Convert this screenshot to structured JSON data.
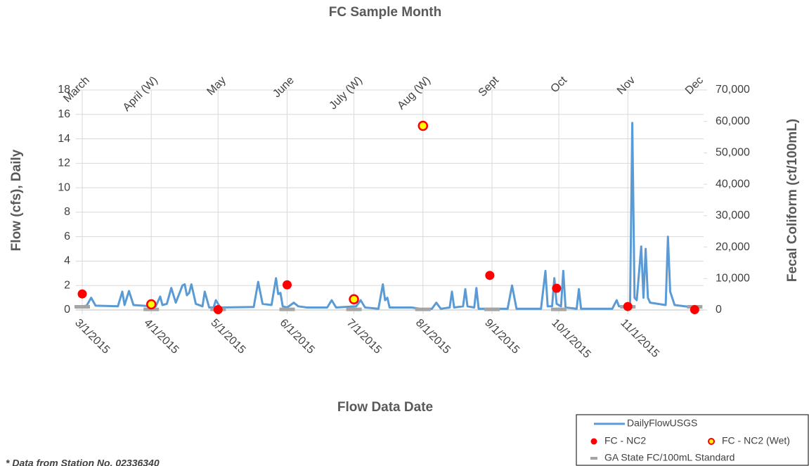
{
  "chart_data": {
    "type": "combo",
    "x2_title": "FC Sample Month",
    "x_title": "Flow Data Date",
    "y_title": "Flow (cfs), Daily",
    "y2_title": "Fecal Coliform (ct/100mL)",
    "footnote": "* Data from Station No. 02336340",
    "x2_categories": [
      "March",
      "April (W)",
      "May",
      "June",
      "July (W)",
      "Aug (W)",
      "Sept",
      "Oct",
      "Nov",
      "Dec"
    ],
    "xlim": [
      "2/26/2015",
      "12/5/2015"
    ],
    "xticks": [
      "3/1/2015",
      "4/1/2015",
      "5/1/2015",
      "6/1/2015",
      "7/1/2015",
      "8/1/2015",
      "9/1/2015",
      "10/1/2015",
      "11/1/2015"
    ],
    "ylim": [
      0,
      18
    ],
    "yticks": [
      0,
      2,
      4,
      6,
      8,
      10,
      12,
      14,
      16,
      18
    ],
    "y2lim": [
      0,
      70000
    ],
    "y2ticks": [
      0,
      {
        "value": 10000,
        "label": "10,000"
      },
      {
        "value": 20000,
        "label": "20,000"
      },
      {
        "value": 30000,
        "label": "30,000"
      },
      {
        "value": 40000,
        "label": "40,000"
      },
      {
        "value": 50000,
        "label": "50,000"
      },
      {
        "value": 60000,
        "label": "60,000"
      },
      {
        "value": 70000,
        "label": "70,000"
      }
    ],
    "grid": true,
    "legend": "bottom-right",
    "series": [
      {
        "name": "DailyFlowUSGS",
        "type": "line",
        "color": "#5b9bd5",
        "x": [
          "3/1/2015",
          "3/3/2015",
          "3/5/2015",
          "3/7/2015",
          "3/17/2015",
          "3/19/2015",
          "3/20/2015",
          "3/22/2015",
          "3/24/2015",
          "4/1/2015",
          "4/3/2015",
          "4/5/2015",
          "4/6/2015",
          "4/8/2015",
          "4/10/2015",
          "4/12/2015",
          "4/15/2015",
          "4/16/2015",
          "4/17/2015",
          "4/18/2015",
          "4/19/2015",
          "4/21/2015",
          "4/24/2015",
          "4/25/2015",
          "4/27/2015",
          "4/29/2015",
          "4/30/2015",
          "5/2/2015",
          "5/17/2015",
          "5/19/2015",
          "5/21/2015",
          "5/25/2015",
          "5/27/2015",
          "5/28/2015",
          "5/29/2015",
          "5/30/2015",
          "6/1/2015",
          "6/4/2015",
          "6/6/2015",
          "6/10/2015",
          "6/19/2015",
          "6/21/2015",
          "6/23/2015",
          "7/2/2015",
          "7/4/2015",
          "7/6/2015",
          "7/12/2015",
          "7/14/2015",
          "7/15/2015",
          "7/16/2015",
          "7/17/2015",
          "7/27/2015",
          "8/1/2015",
          "8/5/2015",
          "8/7/2015",
          "8/9/2015",
          "8/13/2015",
          "8/14/2015",
          "8/15/2015",
          "8/19/2015",
          "8/20/2015",
          "8/21/2015",
          "8/24/2015",
          "8/25/2015",
          "8/26/2015",
          "9/8/2015",
          "9/10/2015",
          "9/12/2015",
          "9/23/2015",
          "9/25/2015",
          "9/26/2015",
          "9/28/2015",
          "9/29/2015",
          "9/30/2015",
          "10/2/2015",
          "10/3/2015",
          "10/4/2015",
          "10/9/2015",
          "10/10/2015",
          "10/11/2015",
          "10/25/2015",
          "10/27/2015",
          "10/28/2015",
          "11/2/2015",
          "11/3/2015",
          "11/4/2015",
          "11/5/2015",
          "11/7/2015",
          "11/8/2015",
          "11/9/2015",
          "11/10/2015",
          "11/11/2015",
          "11/18/2015",
          "11/19/2015",
          "11/20/2015",
          "11/22/2015",
          "12/1/2015",
          "12/4/2015"
        ],
        "values": [
          0.3,
          0.35,
          1.0,
          0.35,
          0.3,
          1.5,
          0.4,
          1.55,
          0.4,
          0.3,
          0.3,
          1.1,
          0.4,
          0.5,
          1.8,
          0.6,
          2.0,
          2.1,
          1.2,
          1.4,
          2.1,
          0.5,
          0.3,
          1.5,
          0.2,
          0.2,
          0.8,
          0.2,
          0.25,
          2.3,
          0.5,
          0.4,
          2.6,
          1.3,
          1.4,
          0.3,
          0.2,
          0.6,
          0.3,
          0.2,
          0.2,
          0.8,
          0.2,
          0.3,
          0.8,
          0.2,
          0.1,
          2.1,
          0.8,
          1.0,
          0.2,
          0.2,
          0.05,
          0.1,
          0.6,
          0.1,
          0.2,
          1.5,
          0.2,
          0.3,
          1.7,
          0.3,
          0.2,
          1.8,
          0.1,
          0.1,
          2.0,
          0.1,
          0.1,
          3.2,
          0.3,
          0.3,
          2.6,
          0.5,
          0.3,
          3.2,
          0.2,
          0.1,
          1.7,
          0.1,
          0.1,
          0.8,
          0.3,
          0.3,
          15.3,
          1.0,
          0.8,
          5.2,
          1.0,
          5.0,
          1.0,
          0.6,
          0.4,
          6.0,
          1.5,
          0.4,
          0.2,
          0.2
        ]
      },
      {
        "name": "FC - NC2",
        "type": "scatter",
        "axis": "y2",
        "color": "#ff0000",
        "x": [
          "3/1/2015",
          "5/1/2015",
          "6/1/2015",
          "8/31/2015",
          "9/30/2015",
          "11/1/2015",
          "12/1/2015"
        ],
        "values": [
          5100,
          100,
          8000,
          11000,
          6900,
          1100,
          100
        ]
      },
      {
        "name": "FC - NC2 (Wet)",
        "type": "scatter",
        "axis": "y2",
        "color": "#ffff00",
        "edge_color": "#ff0000",
        "x": [
          "4/1/2015",
          "7/1/2015",
          "8/1/2015"
        ],
        "values": [
          1800,
          3400,
          58600
        ]
      },
      {
        "name": "GA State FC/100mL Standard",
        "type": "dash",
        "axis": "y2",
        "color": "#a5a5a5",
        "x": [
          "3/1/2015",
          "4/1/2015",
          "5/1/2015",
          "6/1/2015",
          "7/1/2015",
          "8/1/2015",
          "9/1/2015",
          "10/1/2015",
          "11/1/2015",
          "12/1/2015"
        ],
        "values": [
          1000,
          200,
          200,
          200,
          200,
          200,
          200,
          200,
          1000,
          1000
        ]
      }
    ]
  }
}
